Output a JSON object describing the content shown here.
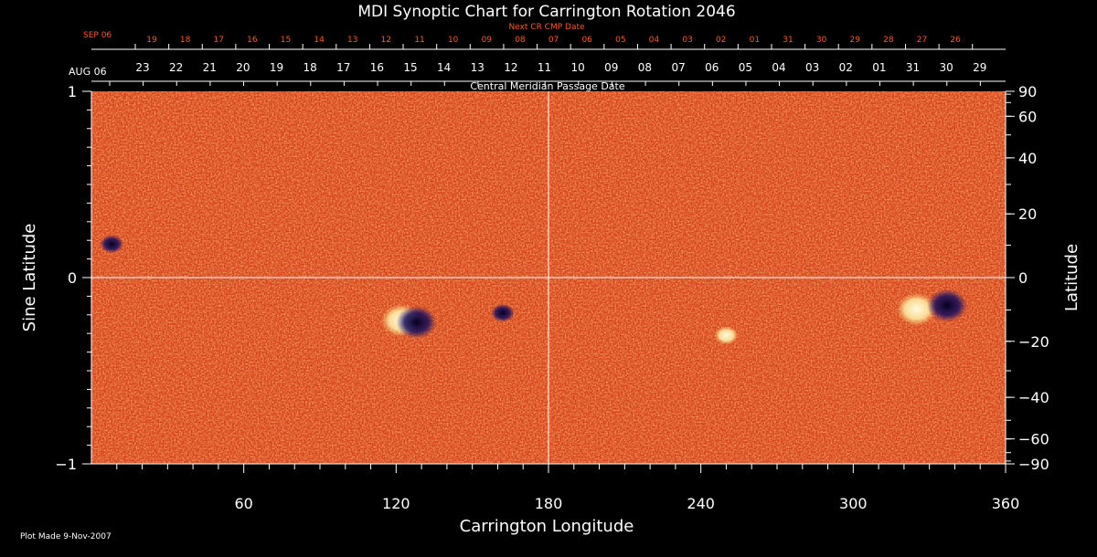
{
  "chart_data": {
    "type": "heatmap",
    "title": "MDI Synoptic Chart for Carrington Rotation 2046",
    "xlabel": "Carrington Longitude",
    "ylabel_left": "Sine Latitude",
    "ylabel_right": "Latitude",
    "xlim": [
      0,
      360
    ],
    "ylim": [
      -1,
      1
    ],
    "x_ticks": [
      60,
      120,
      180,
      240,
      300,
      360
    ],
    "y_ticks_left": [
      1,
      0,
      -1
    ],
    "y_ticks_left_labels": [
      "1",
      "0",
      "−1"
    ],
    "y_ticks_right": [
      90,
      60,
      40,
      20,
      0,
      -20,
      -40,
      -60,
      -90
    ],
    "y_ticks_right_labels": [
      "90",
      "60",
      "40",
      "20",
      "0",
      "−20",
      "−40",
      "−60",
      "−90"
    ],
    "central_meridian_axis": {
      "label": "Central Meridian Passage Date",
      "start_label": "AUG 06",
      "dates": [
        "23",
        "22",
        "21",
        "20",
        "19",
        "18",
        "17",
        "16",
        "15",
        "14",
        "13",
        "12",
        "11",
        "10",
        "09",
        "08",
        "07",
        "06",
        "05",
        "04",
        "03",
        "02",
        "01",
        "31",
        "30",
        "29"
      ]
    },
    "next_cr_axis": {
      "label": "Next CR CMP Date",
      "start_label": "SEP 06",
      "dates": [
        "19",
        "18",
        "17",
        "16",
        "15",
        "14",
        "13",
        "12",
        "11",
        "10",
        "09",
        "08",
        "07",
        "06",
        "05",
        "04",
        "03",
        "02",
        "01",
        "31",
        "30",
        "29",
        "28",
        "27",
        "26"
      ]
    },
    "features": [
      {
        "longitude": 122,
        "sine_latitude": -0.23,
        "polarity": "positive",
        "type": "active region"
      },
      {
        "longitude": 128,
        "sine_latitude": -0.24,
        "polarity": "negative",
        "type": "active region"
      },
      {
        "longitude": 162,
        "sine_latitude": -0.19,
        "polarity": "negative",
        "type": "plage"
      },
      {
        "longitude": 325,
        "sine_latitude": -0.17,
        "polarity": "positive",
        "type": "active region"
      },
      {
        "longitude": 337,
        "sine_latitude": -0.15,
        "polarity": "negative",
        "type": "active region"
      },
      {
        "longitude": 8,
        "sine_latitude": 0.18,
        "polarity": "negative",
        "type": "plage"
      },
      {
        "longitude": 250,
        "sine_latitude": -0.31,
        "polarity": "positive",
        "type": "plage"
      }
    ],
    "colors": {
      "background": "#000000",
      "field_base": "#e0451a",
      "positive": "#fff8d0",
      "negative": "#1a1050",
      "accent_text": "#ff5a1e"
    }
  },
  "footer": {
    "plot_made": "Plot Made  9-Nov-2007"
  }
}
